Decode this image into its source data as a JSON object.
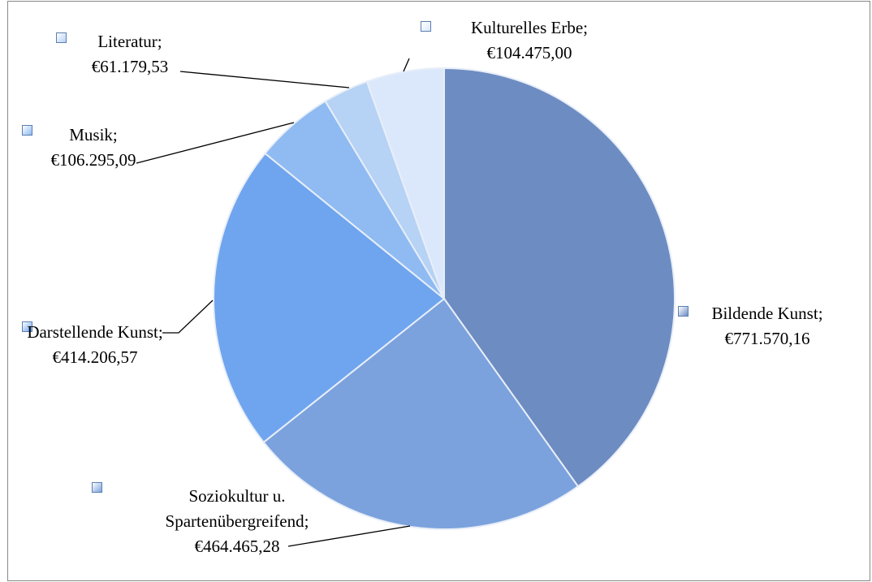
{
  "chart_data": {
    "type": "pie",
    "categories": [
      "Bildende Kunst;",
      "Soziokultur u. Spartenübergreifend;",
      "Darstellende Kunst;",
      "Musik;",
      "Literatur;",
      "Kulturelles Erbe;"
    ],
    "values": [
      771570.16,
      464465.28,
      414206.57,
      106295.09,
      61179.53,
      104475.0
    ],
    "value_labels": [
      "€771.570,16",
      "€464.465,28",
      "€414.206,57",
      "€106.295,09",
      "€61.179,53",
      "€104.475,00"
    ],
    "colors": [
      "#6d8cc2",
      "#7ba2dd",
      "#6fa5ee",
      "#8fbbf2",
      "#b6d2f5",
      "#dbe8fb"
    ]
  }
}
